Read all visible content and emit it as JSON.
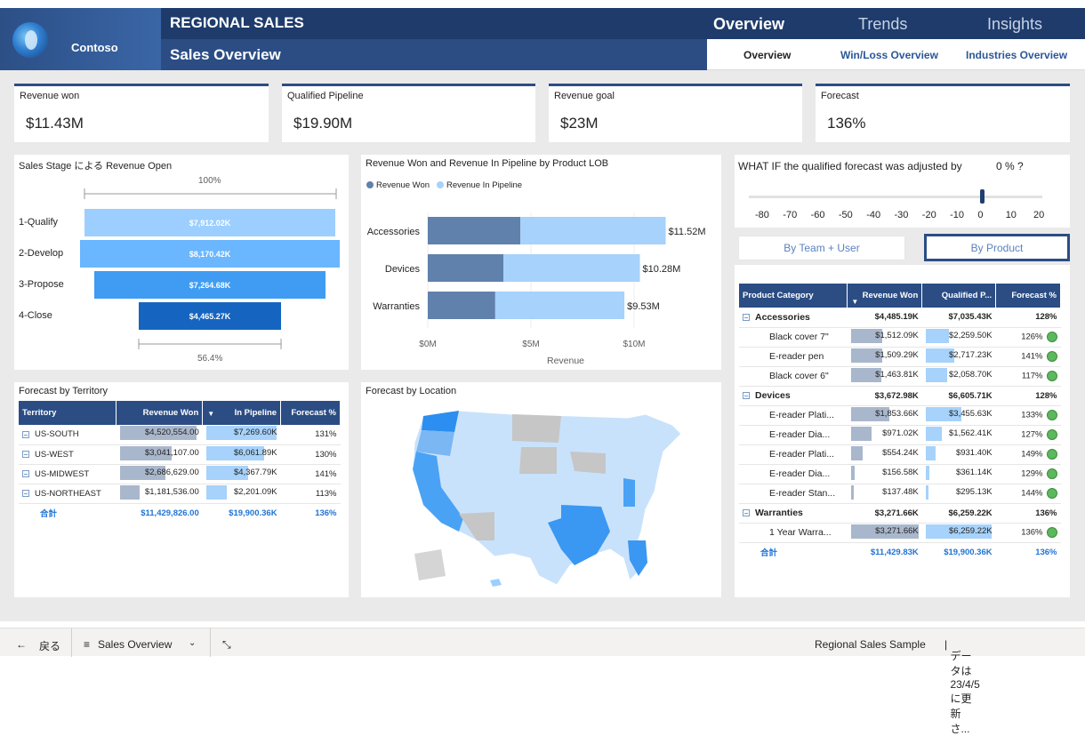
{
  "header": {
    "logo_text": "Contoso",
    "title": "REGIONAL SALES",
    "subtitle": "Sales Overview",
    "tabs": [
      "Overview",
      "Trends",
      "Insights"
    ],
    "subtabs": [
      "Overview",
      "Win/Loss Overview",
      "Industries Overview"
    ]
  },
  "kpis": [
    {
      "label": "Revenue won",
      "value": "$11.43M"
    },
    {
      "label": "Qualified Pipeline",
      "value": "$19.90M"
    },
    {
      "label": "Revenue goal",
      "value": "$23M"
    },
    {
      "label": "Forecast",
      "value": "136%"
    }
  ],
  "funnel": {
    "title": "Sales Stage による Revenue Open",
    "top_pct": "100%",
    "bottom_pct": "56.4%",
    "stages": [
      {
        "label": "1-Qualify",
        "value": 7912.02,
        "text": "$7,912.02K",
        "color": "#9ccfff"
      },
      {
        "label": "2-Develop",
        "value": 8170.42,
        "text": "$8,170.42K",
        "color": "#6ab6ff"
      },
      {
        "label": "3-Propose",
        "value": 7264.68,
        "text": "$7,264.68K",
        "color": "#3f9cf2"
      },
      {
        "label": "4-Close",
        "value": 4465.27,
        "text": "$4,465.27K",
        "color": "#1565c0"
      }
    ]
  },
  "lob_chart": {
    "title": "Revenue Won and Revenue In Pipeline by Product LOB",
    "legend": [
      "Revenue Won",
      "Revenue In Pipeline"
    ],
    "colors": [
      "#6181ad",
      "#a6d2fb"
    ],
    "xlabel": "Revenue",
    "ticks": [
      "$0M",
      "$5M",
      "$10M"
    ],
    "categories": [
      {
        "label": "Accessories",
        "won": 4.49,
        "pipe": 7.04,
        "total_text": "$11.52M"
      },
      {
        "label": "Devices",
        "won": 3.67,
        "pipe": 6.61,
        "total_text": "$10.28M"
      },
      {
        "label": "Warranties",
        "won": 3.27,
        "pipe": 6.26,
        "total_text": "$9.53M"
      }
    ]
  },
  "whatif": {
    "text": "WHAT IF the qualified forecast was adjusted by",
    "value_text": "0 % ?",
    "ticks": [
      "-80",
      "-70",
      "-60",
      "-50",
      "-40",
      "-30",
      "-20",
      "-10",
      "0",
      "10",
      "20"
    ],
    "value": 0
  },
  "toggle": {
    "left": "By Team + User",
    "right": "By Product"
  },
  "territory": {
    "title": "Forecast by Territory",
    "headers": [
      "Territory",
      "Revenue Won",
      "In Pipeline",
      "Forecast %"
    ],
    "rows": [
      {
        "name": "US-SOUTH",
        "won": "$4,520,554.00",
        "won_pct": 1.0,
        "pipe": "$7,269.60K",
        "pipe_pct": 1.0,
        "fc": "131%"
      },
      {
        "name": "US-WEST",
        "won": "$3,041,107.00",
        "won_pct": 0.67,
        "pipe": "$6,061.89K",
        "pipe_pct": 0.83,
        "fc": "130%"
      },
      {
        "name": "US-MIDWEST",
        "won": "$2,686,629.00",
        "won_pct": 0.59,
        "pipe": "$4,367.79K",
        "pipe_pct": 0.6,
        "fc": "141%"
      },
      {
        "name": "US-NORTHEAST",
        "won": "$1,181,536.00",
        "won_pct": 0.26,
        "pipe": "$2,201.09K",
        "pipe_pct": 0.3,
        "fc": "113%"
      }
    ],
    "total": {
      "name": "合計",
      "won": "$11,429,826.00",
      "pipe": "$19,900.36K",
      "fc": "136%"
    }
  },
  "map": {
    "title": "Forecast by Location"
  },
  "product": {
    "headers": [
      "Product Category",
      "Revenue Won",
      "Qualified P...",
      "Forecast %"
    ],
    "groups": [
      {
        "name": "Accessories",
        "won": "$4,485.19K",
        "pipe": "$7,035.43K",
        "fc": "128%",
        "items": [
          {
            "name": "Black cover 7\"",
            "won": "$1,512.09K",
            "won_pct": 0.46,
            "pipe": "$2,259.50K",
            "pipe_pct": 0.36,
            "fc": "126%"
          },
          {
            "name": "E-reader pen",
            "won": "$1,509.29K",
            "won_pct": 0.46,
            "pipe": "$2,717.23K",
            "pipe_pct": 0.43,
            "fc": "141%"
          },
          {
            "name": "Black cover 6\"",
            "won": "$1,463.81K",
            "won_pct": 0.45,
            "pipe": "$2,058.70K",
            "pipe_pct": 0.33,
            "fc": "117%"
          }
        ]
      },
      {
        "name": "Devices",
        "won": "$3,672.98K",
        "pipe": "$6,605.71K",
        "fc": "128%",
        "items": [
          {
            "name": "E-reader Plati...",
            "won": "$1,853.66K",
            "won_pct": 0.57,
            "pipe": "$3,455.63K",
            "pipe_pct": 0.55,
            "fc": "133%"
          },
          {
            "name": "E-reader Dia...",
            "won": "$971.02K",
            "won_pct": 0.3,
            "pipe": "$1,562.41K",
            "pipe_pct": 0.25,
            "fc": "127%"
          },
          {
            "name": "E-reader Plati...",
            "won": "$554.24K",
            "won_pct": 0.17,
            "pipe": "$931.40K",
            "pipe_pct": 0.15,
            "fc": "149%"
          },
          {
            "name": "E-reader Dia...",
            "won": "$156.58K",
            "won_pct": 0.05,
            "pipe": "$361.14K",
            "pipe_pct": 0.06,
            "fc": "129%"
          },
          {
            "name": "E-reader Stan...",
            "won": "$137.48K",
            "won_pct": 0.04,
            "pipe": "$295.13K",
            "pipe_pct": 0.05,
            "fc": "144%"
          }
        ]
      },
      {
        "name": "Warranties",
        "won": "$3,271.66K",
        "pipe": "$6,259.22K",
        "fc": "136%",
        "items": [
          {
            "name": "1 Year Warra...",
            "won": "$3,271.66K",
            "won_pct": 1.0,
            "pipe": "$6,259.22K",
            "pipe_pct": 1.0,
            "fc": "136%"
          }
        ]
      }
    ],
    "total": {
      "name": "合計",
      "won": "$11,429.83K",
      "pipe": "$19,900.36K",
      "fc": "136%"
    }
  },
  "footer": {
    "back": "戻る",
    "page": "Sales Overview",
    "report": "Regional Sales Sample",
    "status": "データは 23/4/5 に更新さ..."
  }
}
